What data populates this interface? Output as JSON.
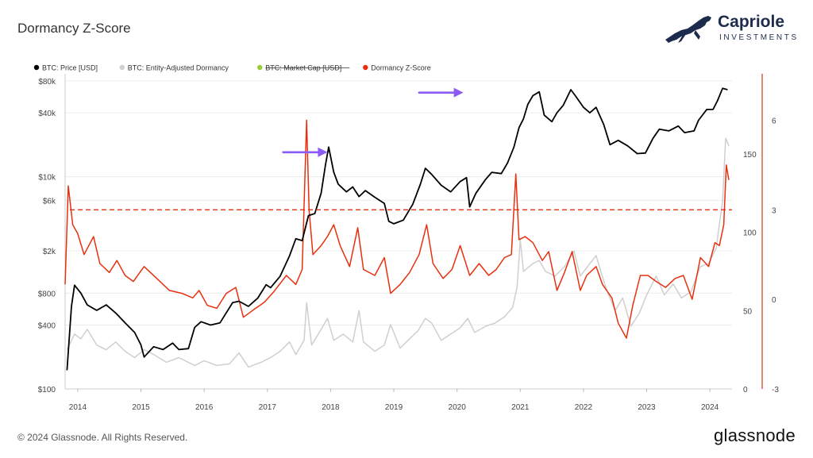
{
  "header": {
    "title": "Dormancy Z-Score"
  },
  "brand": {
    "name": "Capriole",
    "sub": "INVESTMENTS",
    "logo_icon": "horse-icon",
    "color": "#1d2c4c"
  },
  "footer": {
    "copyright": "© 2024 Glassnode. All Rights Reserved.",
    "wordmark": "glassnode"
  },
  "chart_data": {
    "type": "line",
    "legend": [
      {
        "label": "BTC: Price [USD]",
        "color": "#000000",
        "strike": false
      },
      {
        "label": "BTC: Entity-Adjusted Dormancy",
        "color": "#cfcfcf",
        "strike": false
      },
      {
        "label": "BTC: Market Cap [USD]",
        "color": "#9acd32",
        "strike": true
      },
      {
        "label": "Dormancy Z-Score",
        "color": "#e8300f",
        "strike": false
      }
    ],
    "x_ticks": [
      "2014",
      "2015",
      "2016",
      "2017",
      "2018",
      "2019",
      "2020",
      "2021",
      "2022",
      "2023",
      "2024"
    ],
    "x_range": [
      2013.8,
      2024.35
    ],
    "price_axis": {
      "scale": "log",
      "range": [
        100,
        90000
      ],
      "ticks": [
        {
          "v": 80000,
          "label": "$80k"
        },
        {
          "v": 40000,
          "label": "$40k"
        },
        {
          "v": 10000,
          "label": "$10k"
        },
        {
          "v": 6000,
          "label": "$6k"
        },
        {
          "v": 2000,
          "label": "$2k"
        },
        {
          "v": 800,
          "label": "$800"
        },
        {
          "v": 400,
          "label": "$400"
        },
        {
          "v": 100,
          "label": "$100"
        }
      ]
    },
    "dormancy_axis": {
      "range": [
        0,
        200
      ],
      "ticks": [
        0,
        50,
        100,
        150
      ]
    },
    "zscore_axis": {
      "range": [
        -3,
        7.5
      ],
      "ticks": [
        -3,
        0,
        3,
        6
      ]
    },
    "threshold": {
      "zscore": 3,
      "color": "#e8300f",
      "style": "dashed"
    },
    "series": [
      {
        "name": "BTC: Price [USD]",
        "axis": "price",
        "color": "#000000",
        "points": [
          [
            2013.83,
            150
          ],
          [
            2013.9,
            600
          ],
          [
            2013.95,
            950
          ],
          [
            2014.05,
            800
          ],
          [
            2014.15,
            620
          ],
          [
            2014.3,
            550
          ],
          [
            2014.45,
            620
          ],
          [
            2014.6,
            520
          ],
          [
            2014.75,
            420
          ],
          [
            2014.9,
            340
          ],
          [
            2015.0,
            260
          ],
          [
            2015.05,
            200
          ],
          [
            2015.2,
            250
          ],
          [
            2015.35,
            235
          ],
          [
            2015.5,
            270
          ],
          [
            2015.6,
            235
          ],
          [
            2015.75,
            240
          ],
          [
            2015.85,
            380
          ],
          [
            2015.95,
            430
          ],
          [
            2016.1,
            400
          ],
          [
            2016.25,
            420
          ],
          [
            2016.45,
            650
          ],
          [
            2016.55,
            670
          ],
          [
            2016.7,
            600
          ],
          [
            2016.85,
            720
          ],
          [
            2016.98,
            960
          ],
          [
            2017.05,
            900
          ],
          [
            2017.2,
            1150
          ],
          [
            2017.35,
            1800
          ],
          [
            2017.45,
            2600
          ],
          [
            2017.55,
            2500
          ],
          [
            2017.65,
            4300
          ],
          [
            2017.75,
            4500
          ],
          [
            2017.85,
            7000
          ],
          [
            2017.92,
            13000
          ],
          [
            2017.97,
            19000
          ],
          [
            2018.05,
            11000
          ],
          [
            2018.12,
            8500
          ],
          [
            2018.25,
            7200
          ],
          [
            2018.35,
            8000
          ],
          [
            2018.45,
            6500
          ],
          [
            2018.55,
            7400
          ],
          [
            2018.7,
            6400
          ],
          [
            2018.85,
            5600
          ],
          [
            2018.92,
            3800
          ],
          [
            2019.0,
            3600
          ],
          [
            2019.15,
            3900
          ],
          [
            2019.3,
            5500
          ],
          [
            2019.42,
            8500
          ],
          [
            2019.5,
            12000
          ],
          [
            2019.6,
            10500
          ],
          [
            2019.75,
            8300
          ],
          [
            2019.9,
            7200
          ],
          [
            2020.05,
            9000
          ],
          [
            2020.15,
            9800
          ],
          [
            2020.2,
            5200
          ],
          [
            2020.3,
            7000
          ],
          [
            2020.45,
            9400
          ],
          [
            2020.55,
            11000
          ],
          [
            2020.7,
            10700
          ],
          [
            2020.8,
            13500
          ],
          [
            2020.9,
            19000
          ],
          [
            2020.98,
            29000
          ],
          [
            2021.05,
            35000
          ],
          [
            2021.12,
            48000
          ],
          [
            2021.2,
            58000
          ],
          [
            2021.3,
            63000
          ],
          [
            2021.38,
            38000
          ],
          [
            2021.5,
            33000
          ],
          [
            2021.58,
            40000
          ],
          [
            2021.68,
            47000
          ],
          [
            2021.8,
            66000
          ],
          [
            2021.88,
            57000
          ],
          [
            2022.0,
            45000
          ],
          [
            2022.1,
            40000
          ],
          [
            2022.2,
            45000
          ],
          [
            2022.32,
            31000
          ],
          [
            2022.42,
            20000
          ],
          [
            2022.55,
            22000
          ],
          [
            2022.7,
            19500
          ],
          [
            2022.85,
            16500
          ],
          [
            2022.98,
            16700
          ],
          [
            2023.1,
            23000
          ],
          [
            2023.2,
            28000
          ],
          [
            2023.35,
            27000
          ],
          [
            2023.5,
            30000
          ],
          [
            2023.6,
            26000
          ],
          [
            2023.75,
            27000
          ],
          [
            2023.82,
            34000
          ],
          [
            2023.95,
            43000
          ],
          [
            2024.05,
            43000
          ],
          [
            2024.12,
            52000
          ],
          [
            2024.2,
            68000
          ],
          [
            2024.28,
            66000
          ]
        ]
      },
      {
        "name": "BTC: Entity-Adjusted Dormancy",
        "axis": "dormancy",
        "color": "#cfcfcf",
        "points": [
          [
            2013.83,
            25
          ],
          [
            2013.95,
            35
          ],
          [
            2014.05,
            32
          ],
          [
            2014.15,
            38
          ],
          [
            2014.3,
            28
          ],
          [
            2014.45,
            25
          ],
          [
            2014.6,
            30
          ],
          [
            2014.75,
            24
          ],
          [
            2014.9,
            20
          ],
          [
            2015.05,
            25
          ],
          [
            2015.2,
            22
          ],
          [
            2015.4,
            17
          ],
          [
            2015.6,
            20
          ],
          [
            2015.85,
            15
          ],
          [
            2016.0,
            18
          ],
          [
            2016.2,
            15
          ],
          [
            2016.4,
            16
          ],
          [
            2016.55,
            23
          ],
          [
            2016.7,
            14
          ],
          [
            2016.9,
            17
          ],
          [
            2017.05,
            20
          ],
          [
            2017.2,
            24
          ],
          [
            2017.35,
            30
          ],
          [
            2017.45,
            22
          ],
          [
            2017.58,
            31
          ],
          [
            2017.62,
            55
          ],
          [
            2017.7,
            28
          ],
          [
            2017.85,
            38
          ],
          [
            2017.95,
            45
          ],
          [
            2018.05,
            31
          ],
          [
            2018.2,
            35
          ],
          [
            2018.35,
            30
          ],
          [
            2018.45,
            50
          ],
          [
            2018.52,
            30
          ],
          [
            2018.7,
            24
          ],
          [
            2018.85,
            28
          ],
          [
            2018.95,
            41
          ],
          [
            2019.1,
            26
          ],
          [
            2019.25,
            32
          ],
          [
            2019.38,
            37
          ],
          [
            2019.5,
            45
          ],
          [
            2019.6,
            42
          ],
          [
            2019.75,
            31
          ],
          [
            2019.9,
            35
          ],
          [
            2020.05,
            39
          ],
          [
            2020.17,
            45
          ],
          [
            2020.28,
            36
          ],
          [
            2020.45,
            40
          ],
          [
            2020.6,
            42
          ],
          [
            2020.75,
            46
          ],
          [
            2020.88,
            52
          ],
          [
            2020.95,
            65
          ],
          [
            2021.0,
            95
          ],
          [
            2021.05,
            75
          ],
          [
            2021.2,
            80
          ],
          [
            2021.3,
            82
          ],
          [
            2021.4,
            75
          ],
          [
            2021.55,
            72
          ],
          [
            2021.7,
            78
          ],
          [
            2021.85,
            88
          ],
          [
            2021.95,
            72
          ],
          [
            2022.1,
            80
          ],
          [
            2022.2,
            85
          ],
          [
            2022.35,
            65
          ],
          [
            2022.5,
            50
          ],
          [
            2022.62,
            58
          ],
          [
            2022.75,
            40
          ],
          [
            2022.88,
            48
          ],
          [
            2023.0,
            60
          ],
          [
            2023.15,
            72
          ],
          [
            2023.28,
            60
          ],
          [
            2023.42,
            67
          ],
          [
            2023.55,
            58
          ],
          [
            2023.7,
            62
          ],
          [
            2023.85,
            78
          ],
          [
            2023.98,
            80
          ],
          [
            2024.1,
            90
          ],
          [
            2024.2,
            120
          ],
          [
            2024.25,
            160
          ],
          [
            2024.3,
            155
          ]
        ]
      },
      {
        "name": "Dormancy Z-Score",
        "axis": "zscore",
        "color": "#e8300f",
        "points": [
          [
            2013.8,
            0.5
          ],
          [
            2013.85,
            3.8
          ],
          [
            2013.92,
            2.5
          ],
          [
            2014.0,
            2.2
          ],
          [
            2014.1,
            1.5
          ],
          [
            2014.25,
            2.1
          ],
          [
            2014.35,
            1.2
          ],
          [
            2014.5,
            0.9
          ],
          [
            2014.62,
            1.3
          ],
          [
            2014.75,
            0.8
          ],
          [
            2014.88,
            0.6
          ],
          [
            2015.05,
            1.1
          ],
          [
            2015.25,
            0.7
          ],
          [
            2015.45,
            0.3
          ],
          [
            2015.65,
            0.2
          ],
          [
            2015.82,
            0.05
          ],
          [
            2015.92,
            0.3
          ],
          [
            2016.05,
            -0.2
          ],
          [
            2016.2,
            -0.3
          ],
          [
            2016.35,
            0.2
          ],
          [
            2016.5,
            0.4
          ],
          [
            2016.62,
            -0.6
          ],
          [
            2016.78,
            -0.35
          ],
          [
            2016.95,
            -0.1
          ],
          [
            2017.1,
            0.25
          ],
          [
            2017.3,
            0.8
          ],
          [
            2017.45,
            0.5
          ],
          [
            2017.55,
            1.0
          ],
          [
            2017.62,
            6.0
          ],
          [
            2017.66,
            3.0
          ],
          [
            2017.72,
            1.5
          ],
          [
            2017.85,
            1.8
          ],
          [
            2017.95,
            2.1
          ],
          [
            2018.05,
            2.5
          ],
          [
            2018.15,
            1.8
          ],
          [
            2018.3,
            1.1
          ],
          [
            2018.43,
            2.4
          ],
          [
            2018.52,
            1.0
          ],
          [
            2018.7,
            0.8
          ],
          [
            2018.85,
            1.4
          ],
          [
            2018.95,
            0.2
          ],
          [
            2019.1,
            0.5
          ],
          [
            2019.25,
            0.9
          ],
          [
            2019.4,
            1.5
          ],
          [
            2019.52,
            2.5
          ],
          [
            2019.62,
            1.2
          ],
          [
            2019.78,
            0.7
          ],
          [
            2019.92,
            1.0
          ],
          [
            2020.05,
            1.8
          ],
          [
            2020.2,
            0.8
          ],
          [
            2020.35,
            1.2
          ],
          [
            2020.5,
            0.8
          ],
          [
            2020.62,
            1.0
          ],
          [
            2020.75,
            1.4
          ],
          [
            2020.86,
            1.5
          ],
          [
            2020.93,
            4.2
          ],
          [
            2020.98,
            2.0
          ],
          [
            2021.08,
            2.1
          ],
          [
            2021.2,
            1.9
          ],
          [
            2021.35,
            1.3
          ],
          [
            2021.45,
            1.6
          ],
          [
            2021.58,
            0.3
          ],
          [
            2021.7,
            0.9
          ],
          [
            2021.82,
            1.6
          ],
          [
            2021.95,
            0.3
          ],
          [
            2022.05,
            0.8
          ],
          [
            2022.2,
            1.1
          ],
          [
            2022.3,
            0.5
          ],
          [
            2022.45,
            0.05
          ],
          [
            2022.55,
            -0.8
          ],
          [
            2022.68,
            -1.3
          ],
          [
            2022.78,
            -0.2
          ],
          [
            2022.9,
            0.8
          ],
          [
            2023.02,
            0.8
          ],
          [
            2023.15,
            0.6
          ],
          [
            2023.3,
            0.4
          ],
          [
            2023.45,
            0.7
          ],
          [
            2023.58,
            0.8
          ],
          [
            2023.72,
            0.0
          ],
          [
            2023.85,
            1.4
          ],
          [
            2023.98,
            1.1
          ],
          [
            2024.08,
            1.9
          ],
          [
            2024.15,
            1.8
          ],
          [
            2024.22,
            2.5
          ],
          [
            2024.26,
            4.5
          ],
          [
            2024.3,
            4.0
          ]
        ]
      }
    ],
    "annotations": [
      {
        "type": "arrow",
        "color": "#8a5cf5",
        "from": [
          2017.25,
          17000
        ],
        "to": [
          2017.95,
          17000
        ]
      },
      {
        "type": "arrow",
        "color": "#8a5cf5",
        "from": [
          2019.4,
          62000
        ],
        "to": [
          2020.1,
          62000
        ]
      }
    ],
    "x_annotation_2019": "2019"
  }
}
